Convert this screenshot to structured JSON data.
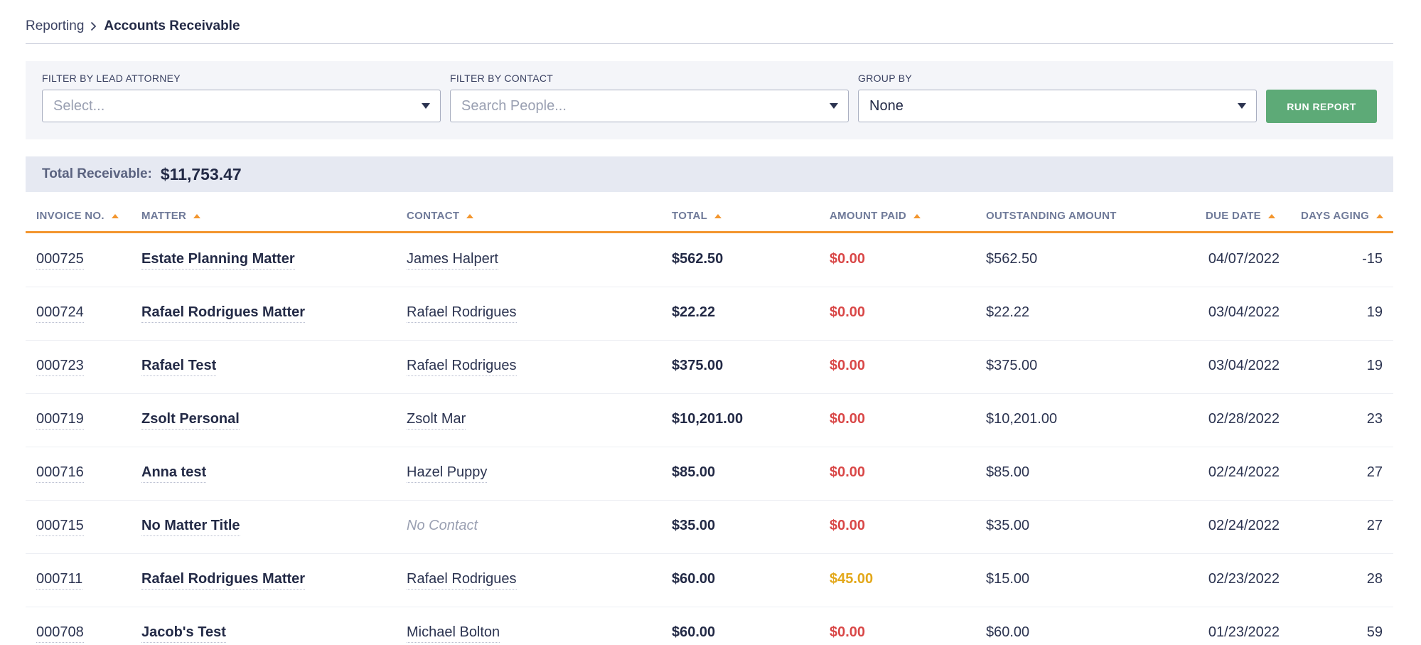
{
  "breadcrumb": {
    "parent": "Reporting",
    "current": "Accounts Receivable"
  },
  "filters": {
    "lead_attorney": {
      "label": "FILTER BY LEAD ATTORNEY",
      "placeholder": "Select..."
    },
    "contact": {
      "label": "FILTER BY CONTACT",
      "placeholder": "Search People..."
    },
    "group_by": {
      "label": "GROUP BY",
      "value": "None"
    },
    "run_report_label": "RUN REPORT"
  },
  "summary": {
    "label": "Total Receivable:",
    "value": "$11,753.47"
  },
  "table": {
    "columns": [
      "INVOICE NO.",
      "MATTER",
      "CONTACT",
      "TOTAL",
      "AMOUNT PAID",
      "OUTSTANDING AMOUNT",
      "DUE DATE",
      "DAYS AGING"
    ],
    "rows": [
      {
        "invoice": "000725",
        "matter": "Estate Planning Matter",
        "contact": "James Halpert",
        "total": "$562.50",
        "paid": "$0.00",
        "outstanding": "$562.50",
        "due": "04/07/2022",
        "days": "-15"
      },
      {
        "invoice": "000724",
        "matter": "Rafael Rodrigues Matter",
        "contact": "Rafael Rodrigues",
        "total": "$22.22",
        "paid": "$0.00",
        "outstanding": "$22.22",
        "due": "03/04/2022",
        "days": "19"
      },
      {
        "invoice": "000723",
        "matter": "Rafael Test",
        "contact": "Rafael Rodrigues",
        "total": "$375.00",
        "paid": "$0.00",
        "outstanding": "$375.00",
        "due": "03/04/2022",
        "days": "19"
      },
      {
        "invoice": "000719",
        "matter": "Zsolt Personal",
        "contact": "Zsolt Mar",
        "total": "$10,201.00",
        "paid": "$0.00",
        "outstanding": "$10,201.00",
        "due": "02/28/2022",
        "days": "23"
      },
      {
        "invoice": "000716",
        "matter": "Anna test",
        "contact": "Hazel Puppy",
        "total": "$85.00",
        "paid": "$0.00",
        "outstanding": "$85.00",
        "due": "02/24/2022",
        "days": "27"
      },
      {
        "invoice": "000715",
        "matter": "No Matter Title",
        "contact": "No Contact",
        "total": "$35.00",
        "paid": "$0.00",
        "outstanding": "$35.00",
        "due": "02/24/2022",
        "days": "27"
      },
      {
        "invoice": "000711",
        "matter": "Rafael Rodrigues Matter",
        "contact": "Rafael Rodrigues",
        "total": "$60.00",
        "paid": "$45.00",
        "outstanding": "$15.00",
        "due": "02/23/2022",
        "days": "28"
      },
      {
        "invoice": "000708",
        "matter": "Jacob's Test",
        "contact": "Michael Bolton",
        "total": "$60.00",
        "paid": "$0.00",
        "outstanding": "$60.00",
        "due": "01/23/2022",
        "days": "59"
      }
    ]
  },
  "colors": {
    "accent_orange": "#f3962e",
    "run_button_green": "#5daa77",
    "unpaid_red": "#d94848",
    "partial_yellow": "#e3a81b"
  },
  "icons": {
    "breadcrumb_separator": "chevron-right-icon",
    "dropdown": "caret-down-icon",
    "sort": "sort-up-icon"
  }
}
